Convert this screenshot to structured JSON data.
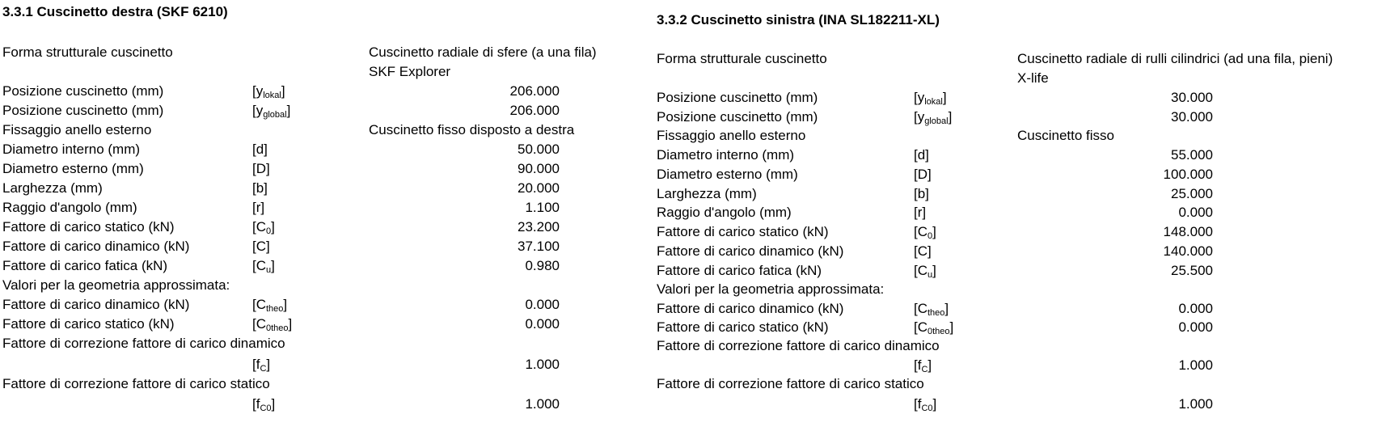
{
  "left": {
    "title": "3.3.1 Cuscinetto destra (SKF 6210)",
    "structural_form": {
      "label": "Forma strutturale cuscinetto",
      "value_line1": "Cuscinetto radiale di sfere (a una fila)",
      "value_line2": "SKF Explorer"
    },
    "rows": [
      {
        "label": "Posizione cuscinetto (mm)",
        "sym": "[y",
        "sub": "lokal",
        "close": "]",
        "value": "206.000"
      },
      {
        "label": "Posizione cuscinetto (mm)",
        "sym": "[y",
        "sub": "global",
        "close": "]",
        "value": "206.000"
      },
      {
        "label": "Fissaggio anello esterno",
        "sym": "",
        "sub": "",
        "close": "",
        "value": "Cuscinetto fisso disposto a destra"
      },
      {
        "label": "Diametro interno (mm)",
        "sym": "[d]",
        "sub": "",
        "close": "",
        "value": "50.000"
      },
      {
        "label": "Diametro esterno (mm)",
        "sym": "[D]",
        "sub": "",
        "close": "",
        "value": "90.000"
      },
      {
        "label": "Larghezza (mm)",
        "sym": "[b]",
        "sub": "",
        "close": "",
        "value": "20.000"
      },
      {
        "label": "Raggio d'angolo (mm)",
        "sym": "[r]",
        "sub": "",
        "close": "",
        "value": "1.100"
      },
      {
        "label": "Fattore di carico statico (kN)",
        "sym": "[C",
        "sub": "0",
        "close": "]",
        "value": "23.200"
      },
      {
        "label": "Fattore di carico dinamico (kN)",
        "sym": "[C]",
        "sub": "",
        "close": "",
        "value": "37.100"
      },
      {
        "label": "Fattore di carico fatica (kN)",
        "sym": "[C",
        "sub": "u",
        "close": "]",
        "value": "0.980"
      },
      {
        "label": "Valori per la geometria approssimata:",
        "sym": "",
        "sub": "",
        "close": "",
        "value": ""
      },
      {
        "label": "Fattore di carico dinamico (kN)",
        "sym": "[C",
        "sub": "theo",
        "close": "]",
        "value": "0.000"
      },
      {
        "label": "Fattore di carico statico (kN)",
        "sym": "[C",
        "sub": "0theo",
        "close": "]",
        "value": "0.000"
      }
    ],
    "corr_dyn": {
      "label": "Fattore di correzione fattore di carico dinamico",
      "sym": "[f",
      "sub": "C",
      "close": "]",
      "value": "1.000"
    },
    "corr_stat": {
      "label": "Fattore di correzione fattore di carico statico",
      "sym": "[f",
      "sub": "C0",
      "close": "]",
      "value": "1.000"
    }
  },
  "right": {
    "title": "3.3.2 Cuscinetto sinistra (INA SL182211-XL)",
    "structural_form": {
      "label": "Forma strutturale cuscinetto",
      "value_line1": "Cuscinetto radiale di rulli cilindrici (ad una fila, pieni)",
      "value_line2": "X-life"
    },
    "rows": [
      {
        "label": "Posizione cuscinetto (mm)",
        "sym": "[y",
        "sub": "lokal",
        "close": "]",
        "value": "30.000"
      },
      {
        "label": "Posizione cuscinetto (mm)",
        "sym": "[y",
        "sub": "global",
        "close": "]",
        "value": "30.000"
      },
      {
        "label": "Fissaggio anello esterno",
        "sym": "",
        "sub": "",
        "close": "",
        "value": "Cuscinetto fisso"
      },
      {
        "label": "Diametro interno (mm)",
        "sym": "[d]",
        "sub": "",
        "close": "",
        "value": "55.000"
      },
      {
        "label": "Diametro esterno (mm)",
        "sym": "[D]",
        "sub": "",
        "close": "",
        "value": "100.000"
      },
      {
        "label": "Larghezza (mm)",
        "sym": "[b]",
        "sub": "",
        "close": "",
        "value": "25.000"
      },
      {
        "label": "Raggio d'angolo (mm)",
        "sym": "[r]",
        "sub": "",
        "close": "",
        "value": "0.000"
      },
      {
        "label": "Fattore di carico statico (kN)",
        "sym": "[C",
        "sub": "0",
        "close": "]",
        "value": "148.000"
      },
      {
        "label": "Fattore di carico dinamico (kN)",
        "sym": "[C]",
        "sub": "",
        "close": "",
        "value": "140.000"
      },
      {
        "label": "Fattore di carico fatica (kN)",
        "sym": "[C",
        "sub": "u",
        "close": "]",
        "value": "25.500"
      },
      {
        "label": "Valori per la geometria approssimata:",
        "sym": "",
        "sub": "",
        "close": "",
        "value": ""
      },
      {
        "label": "Fattore di carico dinamico (kN)",
        "sym": "[C",
        "sub": "theo",
        "close": "]",
        "value": "0.000"
      },
      {
        "label": "Fattore di carico statico (kN)",
        "sym": "[C",
        "sub": "0theo",
        "close": "]",
        "value": "0.000"
      }
    ],
    "corr_dyn": {
      "label": "Fattore di correzione fattore di carico dinamico",
      "sym": "[f",
      "sub": "C",
      "close": "]",
      "value": "1.000"
    },
    "corr_stat": {
      "label": "Fattore di correzione fattore di carico statico",
      "sym": "[f",
      "sub": "C0",
      "close": "]",
      "value": "1.000"
    }
  }
}
